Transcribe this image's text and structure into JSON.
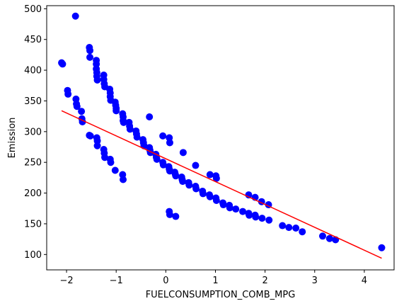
{
  "chart_data": {
    "type": "scatter",
    "title": "",
    "xlabel": "FUELCONSUMPTION_COMB_MPG",
    "ylabel": "Emission",
    "xlim": [
      -2.4,
      4.6
    ],
    "ylim": [
      75,
      505
    ],
    "xticks": [
      -2,
      -1,
      0,
      1,
      2,
      3,
      4
    ],
    "yticks": [
      100,
      150,
      200,
      250,
      300,
      350,
      400,
      450,
      500
    ],
    "grid": false,
    "legend": "none",
    "scatter_color": "#0000ff",
    "line_color": "#ff0000",
    "series": [
      {
        "type": "scatter",
        "points": [
          [
            -2.1,
            412
          ],
          [
            -2.08,
            410
          ],
          [
            -1.98,
            367
          ],
          [
            -1.97,
            361
          ],
          [
            -1.82,
            488
          ],
          [
            -1.81,
            353
          ],
          [
            -1.8,
            345
          ],
          [
            -1.79,
            341
          ],
          [
            -1.7,
            333
          ],
          [
            -1.69,
            321
          ],
          [
            -1.68,
            316
          ],
          [
            -1.54,
            437
          ],
          [
            -1.53,
            432
          ],
          [
            -1.53,
            421
          ],
          [
            -1.54,
            294
          ],
          [
            -1.52,
            293
          ],
          [
            -1.4,
            416
          ],
          [
            -1.4,
            410
          ],
          [
            -1.4,
            402
          ],
          [
            -1.39,
            396
          ],
          [
            -1.39,
            390
          ],
          [
            -1.38,
            384
          ],
          [
            -1.39,
            290
          ],
          [
            -1.38,
            285
          ],
          [
            -1.38,
            277
          ],
          [
            -1.25,
            392
          ],
          [
            -1.25,
            385
          ],
          [
            -1.24,
            378
          ],
          [
            -1.23,
            373
          ],
          [
            -1.25,
            271
          ],
          [
            -1.24,
            265
          ],
          [
            -1.23,
            258
          ],
          [
            -1.13,
            369
          ],
          [
            -1.12,
            363
          ],
          [
            -1.12,
            357
          ],
          [
            -1.11,
            351
          ],
          [
            -1.12,
            255
          ],
          [
            -1.11,
            250
          ],
          [
            -1.02,
            348
          ],
          [
            -1.01,
            343
          ],
          [
            -1.0,
            338
          ],
          [
            -1.0,
            334
          ],
          [
            -1.02,
            237
          ],
          [
            -0.87,
            329
          ],
          [
            -0.86,
            324
          ],
          [
            -0.86,
            318
          ],
          [
            -0.85,
            315
          ],
          [
            -0.87,
            230
          ],
          [
            -0.86,
            222
          ],
          [
            -0.74,
            315
          ],
          [
            -0.73,
            309
          ],
          [
            -0.72,
            304
          ],
          [
            -0.6,
            301
          ],
          [
            -0.59,
            296
          ],
          [
            -0.58,
            291
          ],
          [
            -0.46,
            287
          ],
          [
            -0.45,
            282
          ],
          [
            -0.44,
            277
          ],
          [
            -0.33,
            274
          ],
          [
            -0.32,
            270
          ],
          [
            -0.31,
            266
          ],
          [
            -0.33,
            324
          ],
          [
            -0.2,
            263
          ],
          [
            -0.19,
            258
          ],
          [
            -0.18,
            255
          ],
          [
            -0.06,
            250
          ],
          [
            -0.05,
            246
          ],
          [
            -0.06,
            293
          ],
          [
            0.06,
            243
          ],
          [
            0.07,
            239
          ],
          [
            0.08,
            236
          ],
          [
            0.07,
            290
          ],
          [
            0.08,
            282
          ],
          [
            0.18,
            234
          ],
          [
            0.19,
            231
          ],
          [
            0.2,
            228
          ],
          [
            0.32,
            226
          ],
          [
            0.33,
            222
          ],
          [
            0.34,
            219
          ],
          [
            0.35,
            266
          ],
          [
            0.46,
            217
          ],
          [
            0.47,
            213
          ],
          [
            0.6,
            211
          ],
          [
            0.61,
            207
          ],
          [
            0.6,
            245
          ],
          [
            0.74,
            203
          ],
          [
            0.75,
            199
          ],
          [
            0.88,
            197
          ],
          [
            0.89,
            194
          ],
          [
            0.89,
            230
          ],
          [
            1.01,
            192
          ],
          [
            1.02,
            188
          ],
          [
            1.01,
            228
          ],
          [
            1.02,
            224
          ],
          [
            1.15,
            184
          ],
          [
            1.16,
            181
          ],
          [
            1.28,
            180
          ],
          [
            1.29,
            176
          ],
          [
            1.41,
            174
          ],
          [
            1.55,
            170
          ],
          [
            1.67,
            167
          ],
          [
            1.68,
            164
          ],
          [
            1.67,
            197
          ],
          [
            1.8,
            164
          ],
          [
            1.81,
            161
          ],
          [
            1.8,
            193
          ],
          [
            1.94,
            159
          ],
          [
            1.93,
            186
          ],
          [
            2.08,
            156
          ],
          [
            2.07,
            181
          ],
          [
            2.35,
            147
          ],
          [
            2.48,
            144
          ],
          [
            2.62,
            143
          ],
          [
            2.75,
            137
          ],
          [
            3.16,
            130
          ],
          [
            3.3,
            126
          ],
          [
            3.42,
            124
          ],
          [
            4.35,
            111
          ],
          [
            0.07,
            170
          ],
          [
            0.08,
            165
          ],
          [
            0.2,
            162
          ]
        ]
      },
      {
        "type": "line",
        "points": [
          [
            -2.1,
            334
          ],
          [
            4.35,
            94
          ]
        ]
      }
    ]
  }
}
